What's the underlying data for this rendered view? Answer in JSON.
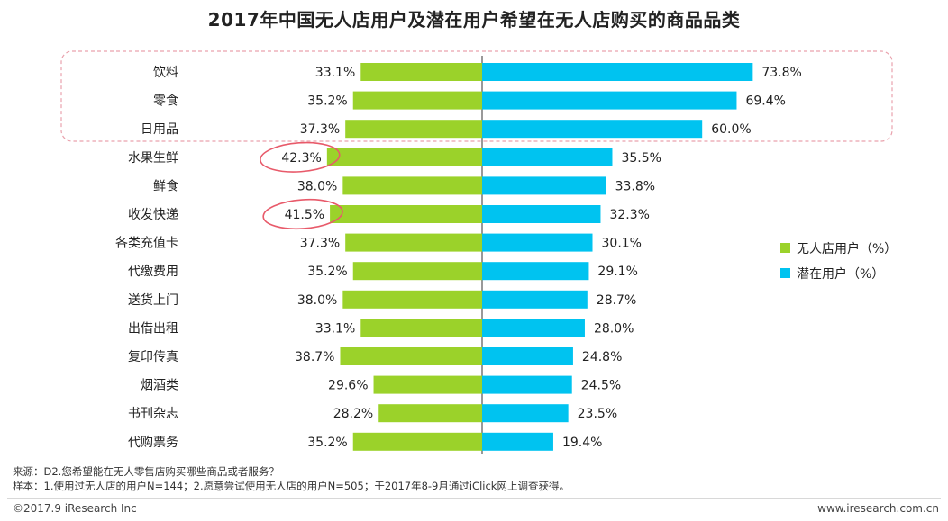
{
  "title": "2017年中国无人店用户及潜在用户希望在无人店购买的商品品类",
  "chart_data": {
    "type": "bar",
    "orientation": "horizontal-diverging",
    "categories": [
      "饮料",
      "零食",
      "日用品",
      "水果生鲜",
      "鲜食",
      "收发快递",
      "各类充值卡",
      "代缴费用",
      "送货上门",
      "出借出租",
      "复印传真",
      "烟酒类",
      "书刊杂志",
      "代购票务"
    ],
    "series": [
      {
        "name": "无人店用户（%）",
        "color": "#9bd22a",
        "values": [
          33.1,
          35.2,
          37.3,
          42.3,
          38.0,
          41.5,
          37.3,
          35.2,
          38.0,
          33.1,
          38.7,
          29.6,
          28.2,
          35.2
        ]
      },
      {
        "name": "潜在用户（%）",
        "color": "#00c3f0",
        "values": [
          73.8,
          69.4,
          60.0,
          35.5,
          33.8,
          32.3,
          30.1,
          29.1,
          28.7,
          28.0,
          24.8,
          24.5,
          23.5,
          19.4
        ]
      }
    ],
    "value_labels_left": [
      "33.1%",
      "35.2%",
      "37.3%",
      "42.3%",
      "38.0%",
      "41.5%",
      "37.3%",
      "35.2%",
      "38.0%",
      "33.1%",
      "38.7%",
      "29.6%",
      "28.2%",
      "35.2%"
    ],
    "value_labels_right": [
      "73.8%",
      "69.4%",
      "60.0%",
      "35.5%",
      "33.8%",
      "32.3%",
      "30.1%",
      "29.1%",
      "28.7%",
      "28.0%",
      "24.8%",
      "24.5%",
      "23.5%",
      "19.4%"
    ],
    "legend_position": "right",
    "highlight_box": "top three categories",
    "circled_values": [
      "42.3%",
      "41.5%"
    ],
    "xlim": [
      0,
      80
    ],
    "grid": false
  },
  "source": {
    "line1": "来源：D2.您希望能在无人零售店购买哪些商品或者服务？",
    "line2": "样本：1.使用过无人店的用户N=144；2.愿意尝试使用无人店的用户N=505；于2017年8-9月通过iClick网上调查获得。"
  },
  "footer": {
    "copyright": "©2017.9 iResearch Inc",
    "website": "www.iresearch.com.cn"
  }
}
